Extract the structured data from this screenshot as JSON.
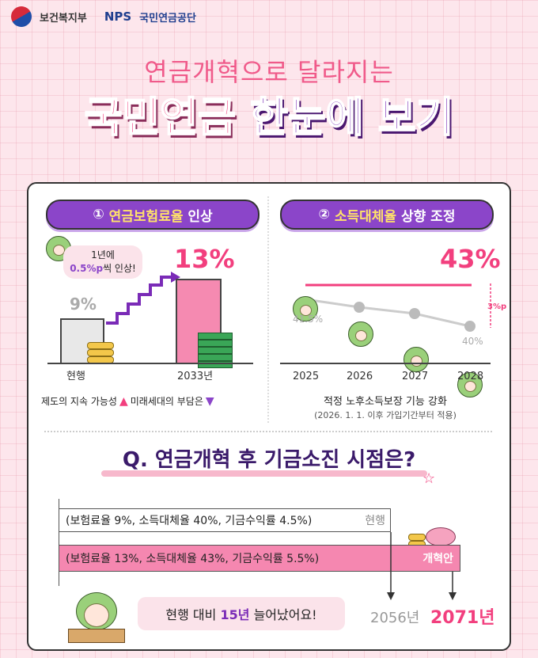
{
  "logos": {
    "mohw": "보건복지부",
    "nps": "NPS",
    "nps_name": "국민연금공단"
  },
  "header": {
    "subtitle": "연금개혁으로 달라지는",
    "title_part1": "국민연금",
    "title_part2": "한눈에 보기"
  },
  "section1": {
    "badge_num": "①",
    "badge_text": "연금보험료율",
    "badge_suffix": "인상",
    "bubble_line1": "1년에",
    "bubble_hl": "0.5%p",
    "bubble_line2": "씩 인상!",
    "current_value": "9%",
    "new_value": "13%",
    "current_label": "현행",
    "new_label": "2033년",
    "footer_a": "제도의 지속 가능성",
    "footer_b": "미래세대의 부담은",
    "up_icon": "up-arrow-icon",
    "down_icon": "down-arrow-icon"
  },
  "section2": {
    "badge_num": "②",
    "badge_text": "소득대체율",
    "badge_suffix": "상향 조정",
    "big_value": "43%",
    "old_start": "41.5%",
    "old_end": "40%",
    "diff": "3%p",
    "years": [
      "2025",
      "2026",
      "2027",
      "2028"
    ],
    "caption": "적정 노후소득보장 기능 강화",
    "note": "(2026. 1. 1. 이후 가입기간부터 적용)"
  },
  "section3": {
    "question": "Q. 연금개혁 후 기금소진 시점은?",
    "current_params": "(보험료율 9%, 소득대체율 40%, 기금수익률 4.5%)",
    "current_tag": "현행",
    "new_params": "(보험료율 13%, 소득대체율 43%, 기금수익률 5.5%)",
    "new_tag": "개혁안",
    "speech_a": "현행 대비",
    "speech_hl": "15년",
    "speech_b": "늘어났어요!",
    "year_current": "2056년",
    "year_new": "2071년"
  },
  "colors": {
    "pink": "#f23f7e",
    "purple": "#8b45c9",
    "bg": "#fde6ec"
  }
}
